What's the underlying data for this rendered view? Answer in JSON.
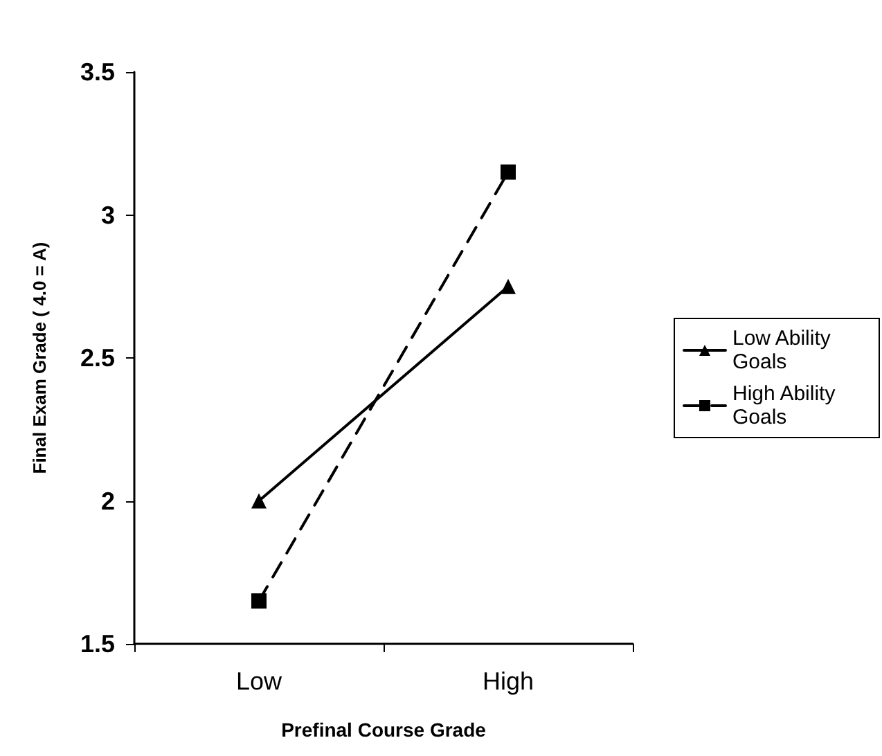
{
  "chart_data": {
    "type": "line",
    "xlabel": "Prefinal Course Grade",
    "ylabel": "Final Exam Grade ( 4.0 = A)",
    "categories": [
      "Low",
      "High"
    ],
    "ylim": [
      1.5,
      3.5
    ],
    "yticks": [
      1.5,
      2,
      2.5,
      3,
      3.5
    ],
    "grid": false,
    "legend": "right",
    "series": [
      {
        "name": "Low Ability Goals",
        "color": "#000000",
        "values": [
          2.0,
          2.75
        ],
        "marker": "triangle",
        "line_style": "solid"
      },
      {
        "name": "High Ability Goals",
        "color": "#000000",
        "values": [
          1.65,
          3.15
        ],
        "marker": "square",
        "line_style": "dashed"
      }
    ]
  }
}
